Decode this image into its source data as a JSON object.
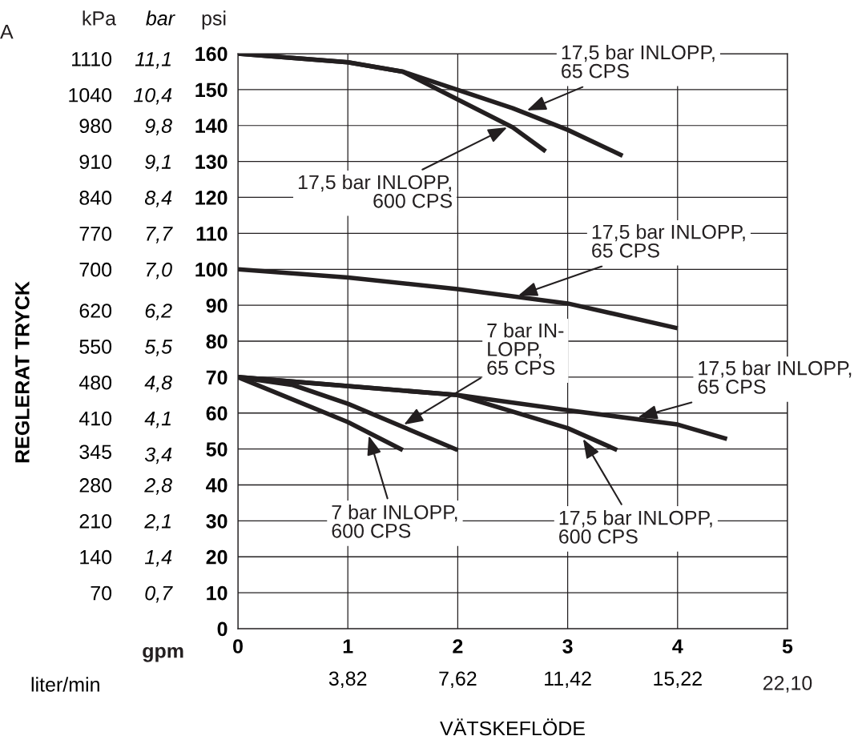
{
  "chart_data": {
    "type": "line",
    "xlabel": "VÄTSKEFLÖDE",
    "y3label": "REGLERAT TRYCK",
    "y2label": "bar",
    "x2label": "liter/min",
    "xlim": [
      0,
      5
    ],
    "xticks": [
      0,
      1,
      2,
      3,
      4,
      5
    ],
    "x2lim": [
      0.02,
      19.02
    ],
    "x2ticks": [
      {
        "value": 3.82,
        "label": "3,82"
      },
      {
        "value": 7.62,
        "label": "7,62"
      },
      {
        "value": 11.42,
        "label": "11,42"
      },
      {
        "value": 15.22,
        "label": "15,22"
      }
    ],
    "ylim": [
      0,
      160
    ],
    "yticks": [
      0,
      10,
      20,
      30,
      40,
      50,
      60,
      70,
      80,
      90,
      100,
      110,
      120,
      130,
      140,
      150,
      160
    ],
    "y2lim": [
      0,
      11.2
    ],
    "y2ticks": [
      {
        "value": 0.7,
        "label": "0,7"
      },
      {
        "value": 1.4,
        "label": "1,4"
      },
      {
        "value": 2.1,
        "label": "2,1"
      },
      {
        "value": 2.8,
        "label": "2,8"
      },
      {
        "value": 3.4,
        "label": "3,4"
      },
      {
        "value": 4.1,
        "label": "4,1"
      },
      {
        "value": 4.8,
        "label": "4,8"
      },
      {
        "value": 5.5,
        "label": "5,5"
      },
      {
        "value": 6.2,
        "label": "6,2"
      },
      {
        "value": 7.0,
        "label": "7,0"
      },
      {
        "value": 7.7,
        "label": "7,7"
      },
      {
        "value": 8.4,
        "label": "8,4"
      },
      {
        "value": 9.1,
        "label": "9,1"
      },
      {
        "value": 9.8,
        "label": "9,8"
      },
      {
        "value": 10.4,
        "label": "10,4"
      },
      {
        "value": 11.1,
        "label": "11,1"
      }
    ],
    "y3lim": [
      0,
      1120
    ],
    "y3ticks": [
      70,
      140,
      210,
      280,
      345,
      410,
      480,
      550,
      620,
      700,
      770,
      840,
      910,
      980,
      1040,
      1110
    ],
    "grid": true,
    "marker": "none",
    "line_style": "solid",
    "series": [
      {
        "color": "#231f20",
        "x": [
          0,
          1,
          1.5,
          2.5,
          3,
          3.5
        ],
        "values": [
          160,
          157.6,
          155,
          144.8,
          138.8,
          131.6
        ]
      },
      {
        "color": "#231f20",
        "x": [
          0,
          1,
          1.5,
          2.5,
          2.8
        ],
        "values": [
          160,
          157.6,
          155,
          139.5,
          132.8
        ]
      },
      {
        "color": "#231f20",
        "x": [
          0,
          1,
          2,
          3,
          4
        ],
        "values": [
          100,
          97.7,
          94.5,
          90.5,
          83.6
        ]
      },
      {
        "color": "#231f20",
        "x": [
          0,
          2,
          3,
          4,
          4.45
        ],
        "values": [
          70,
          65,
          60.8,
          56.8,
          52.8
        ]
      },
      {
        "color": "#231f20",
        "x": [
          0,
          2,
          3,
          3.45
        ],
        "values": [
          70,
          65,
          55.8,
          49.7
        ]
      },
      {
        "color": "#231f20",
        "x": [
          0,
          0.5,
          1,
          2
        ],
        "values": [
          70,
          67.8,
          62.6,
          49.7
        ]
      },
      {
        "color": "#231f20",
        "x": [
          0,
          1,
          1.5
        ],
        "values": [
          70,
          57.5,
          49.7
        ]
      }
    ],
    "annotations": [
      {
        "text": "17,5 bar INLOPP,\n65 CPS",
        "x": 2.63,
        "y": 144.2
      },
      {
        "text": "17,5 bar INLOPP,\n600 CPS",
        "x": 2.45,
        "y": 139.5
      },
      {
        "text": "17,5 bar INLOPP,\n65 CPS",
        "x": 2.55,
        "y": 92.7
      },
      {
        "text": "7 bar IN-\nLOPP,\n65 CPS",
        "x": 1.51,
        "y": 56.8
      },
      {
        "text": "17,5 bar INLOPP,\n65 CPS",
        "x": 3.64,
        "y": 58.8
      },
      {
        "text": "7 bar INLOPP,\n600 CPS",
        "x": 1.19,
        "y": 53.7
      },
      {
        "text": "17,5 bar INLOPP,\n600 CPS",
        "x": 3.14,
        "y": 52.8
      },
      "A",
      "psi",
      "gpm",
      "22,10",
      "kPa"
    ]
  }
}
